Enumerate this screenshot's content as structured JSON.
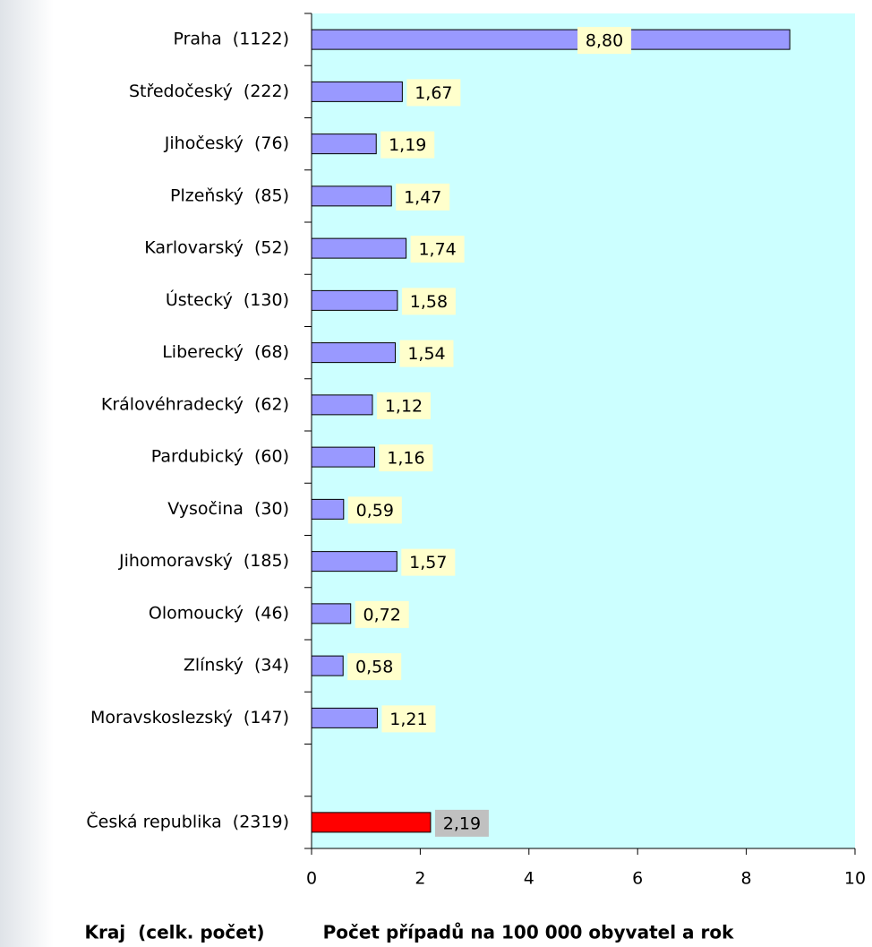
{
  "chart_data": {
    "type": "hbar",
    "categories": [
      "Praha  (1122)",
      "Středočeský  (222)",
      "Jihočeský  (76)",
      "Plzeňský  (85)",
      "Karlovarský  (52)",
      "Ústecký  (130)",
      "Liberecký  (68)",
      "Královéhradecký  (62)",
      "Pardubický  (60)",
      "Vysočina  (30)",
      "Jihomoravský  (185)",
      "Olomoucký  (46)",
      "Zlínský  (34)",
      "Moravskoslezský  (147)",
      null,
      "Česká republika  (2319)"
    ],
    "values": [
      8.8,
      1.67,
      1.19,
      1.47,
      1.74,
      1.58,
      1.54,
      1.12,
      1.16,
      0.59,
      1.57,
      0.72,
      0.58,
      1.21,
      null,
      2.19
    ],
    "value_labels": [
      "8,80",
      "1,67",
      "1,19",
      "1,47",
      "1,74",
      "1,58",
      "1,54",
      "1,12",
      "1,16",
      "0,59",
      "1,57",
      "0,72",
      "0,58",
      "1,21",
      null,
      "2,19"
    ],
    "colors": [
      "#9999ff",
      "#9999ff",
      "#9999ff",
      "#9999ff",
      "#9999ff",
      "#9999ff",
      "#9999ff",
      "#9999ff",
      "#9999ff",
      "#9999ff",
      "#9999ff",
      "#9999ff",
      "#9999ff",
      "#9999ff",
      null,
      "#ff0000"
    ],
    "label_colors": [
      "#ffffcc",
      "#ffffcc",
      "#ffffcc",
      "#ffffcc",
      "#ffffcc",
      "#ffffcc",
      "#ffffcc",
      "#ffffcc",
      "#ffffcc",
      "#ffffcc",
      "#ffffcc",
      "#ffffcc",
      "#ffffcc",
      "#ffffcc",
      null,
      "#c0c0c0"
    ],
    "plot_background": "#ccffff",
    "xlim": [
      0,
      10
    ],
    "xticks": [
      0,
      2,
      4,
      6,
      8,
      10
    ],
    "y_label": "Kraj  (celk. počet)",
    "x_label": "Počet případů na 100 000 obyvatel a rok"
  }
}
